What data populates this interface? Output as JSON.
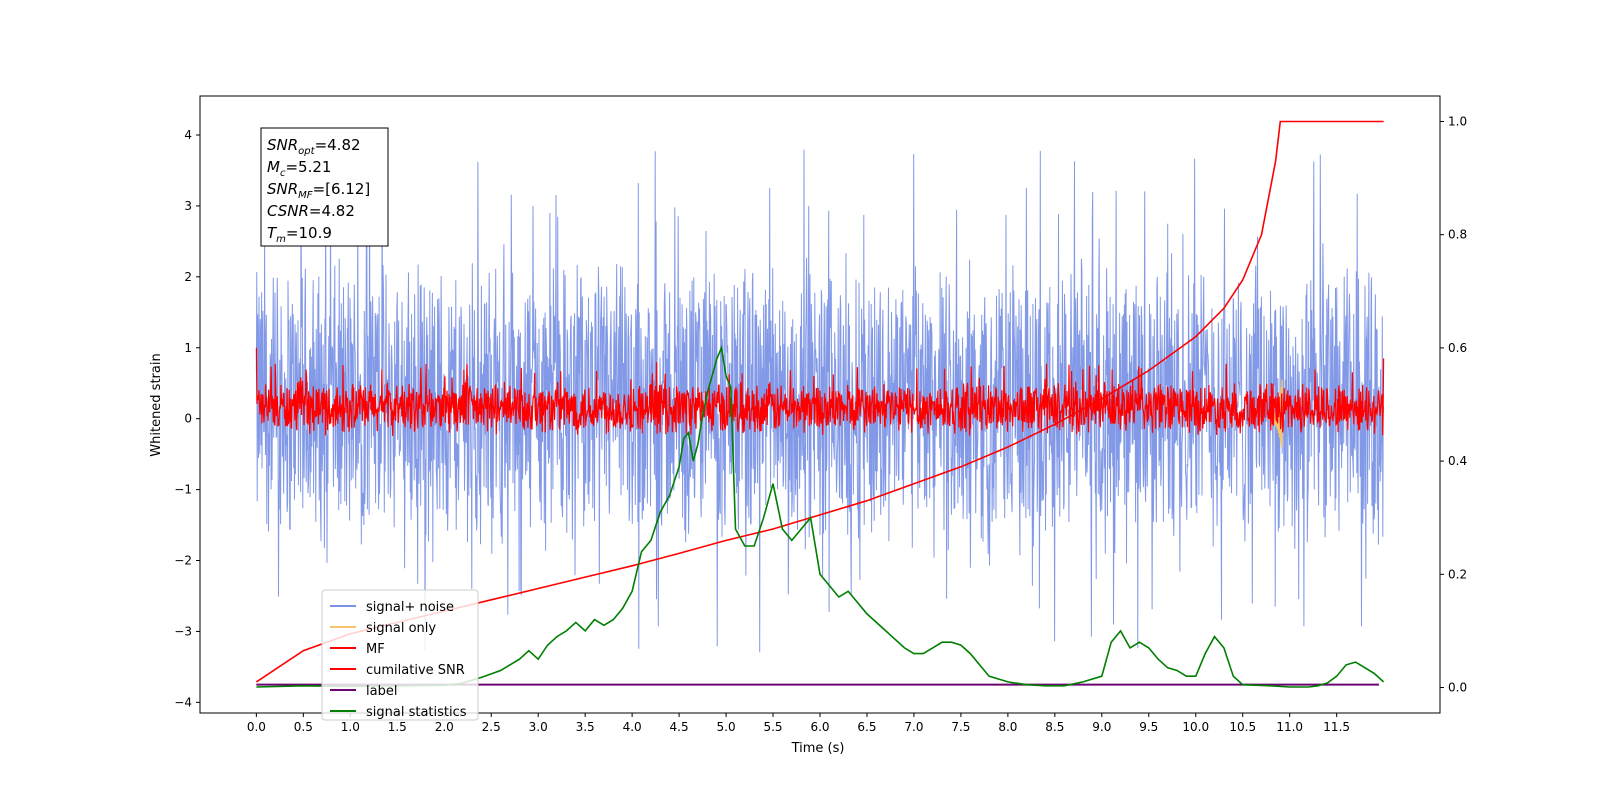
{
  "chart_data": {
    "type": "line",
    "xlabel": "Time (s)",
    "ylabel": "Whitened strain",
    "xlim": [
      -0.6,
      12.6
    ],
    "ylim": [
      -4.15,
      4.55
    ],
    "ylim_right": [
      -0.045,
      1.045
    ],
    "x_ticks": [
      "0.0",
      "0.5",
      "1.0",
      "1.5",
      "2.0",
      "2.5",
      "3.0",
      "3.5",
      "4.0",
      "4.5",
      "5.0",
      "5.5",
      "6.0",
      "6.5",
      "7.0",
      "7.5",
      "8.0",
      "8.5",
      "9.0",
      "9.5",
      "10.0",
      "10.5",
      "11.0",
      "11.5"
    ],
    "y_ticks_left": [
      "4",
      "3",
      "2",
      "1",
      "0",
      "−1",
      "−2",
      "−3",
      "−4"
    ],
    "y_ticks_right": [
      "1.0",
      "0.8",
      "0.6",
      "0.4",
      "0.2",
      "0.0"
    ],
    "annotation": {
      "lines": [
        {
          "sym": "SNR",
          "sub": "opt",
          "val": "=4.82"
        },
        {
          "sym": "M",
          "sub": "c",
          "val": "=5.21"
        },
        {
          "sym": "SNR",
          "sub": "MF",
          "val": "=[6.12]"
        },
        {
          "sym": "CSNR",
          "sub": "",
          "val": "=4.82"
        },
        {
          "sym": "T",
          "sub": "m",
          "val": "=10.9"
        }
      ]
    },
    "legend": {
      "placement": "lower-left",
      "entries": [
        {
          "label": "signal+ noise",
          "color": "#7b93e6"
        },
        {
          "label": "signal only",
          "color": "#f5c56e"
        },
        {
          "label": "MF",
          "color": "#ff0000"
        },
        {
          "label": "cumilative SNR",
          "color": "#ff0000"
        },
        {
          "label": "label",
          "color": "#6a0572"
        },
        {
          "label": "signal statistics",
          "color": "#007f00"
        }
      ]
    },
    "series": [
      {
        "name": "signal+ noise",
        "axis": "left",
        "color": "#7b93e6",
        "x_range": [
          0.0,
          12.0
        ],
        "band": [
          -2.0,
          2.4
        ],
        "spike_high": [
          4.17,
          4.0
        ],
        "spike_low": [
          -3.7,
          -3.6
        ]
      },
      {
        "name": "MF",
        "axis": "left",
        "color": "#ff0000",
        "x_range": [
          0.0,
          12.0
        ],
        "band": [
          -0.25,
          0.55
        ],
        "start_value": 1.0,
        "end_value": 0.85
      },
      {
        "name": "signal only",
        "axis": "left",
        "color": "#f5c56e",
        "x_range": [
          10.75,
          10.92
        ],
        "peak": [
          -0.45,
          0.55
        ]
      },
      {
        "name": "cumilative SNR",
        "axis": "right",
        "color": "#ff0000",
        "x": [
          0.0,
          0.5,
          1.0,
          1.5,
          2.0,
          2.5,
          3.0,
          3.5,
          4.0,
          4.5,
          5.0,
          5.5,
          6.0,
          6.5,
          7.0,
          7.5,
          8.0,
          8.5,
          9.0,
          9.5,
          10.0,
          10.3,
          10.5,
          10.7,
          10.85,
          10.9,
          11.2,
          11.5,
          12.0
        ],
        "values": [
          0.01,
          0.065,
          0.095,
          0.115,
          0.135,
          0.155,
          0.175,
          0.195,
          0.215,
          0.237,
          0.26,
          0.28,
          0.305,
          0.33,
          0.36,
          0.39,
          0.425,
          0.465,
          0.51,
          0.56,
          0.62,
          0.67,
          0.72,
          0.8,
          0.93,
          1.0,
          1.0,
          1.0,
          1.0
        ]
      },
      {
        "name": "label",
        "axis": "left",
        "color": "#6a0572",
        "x": [
          0.0,
          11.95
        ],
        "values": [
          -3.75,
          -3.75
        ]
      },
      {
        "name": "signal statistics",
        "axis": "right",
        "color": "#007f00",
        "x": [
          0.0,
          0.5,
          1.0,
          1.5,
          2.0,
          2.2,
          2.4,
          2.6,
          2.8,
          2.9,
          3.0,
          3.1,
          3.2,
          3.3,
          3.4,
          3.5,
          3.6,
          3.7,
          3.8,
          3.9,
          4.0,
          4.1,
          4.2,
          4.3,
          4.4,
          4.5,
          4.55,
          4.6,
          4.65,
          4.7,
          4.75,
          4.8,
          4.85,
          4.9,
          4.95,
          5.0,
          5.05,
          5.1,
          5.2,
          5.3,
          5.4,
          5.5,
          5.6,
          5.7,
          5.8,
          5.9,
          6.0,
          6.1,
          6.2,
          6.3,
          6.5,
          6.7,
          6.9,
          7.0,
          7.1,
          7.2,
          7.3,
          7.4,
          7.5,
          7.6,
          7.8,
          8.0,
          8.2,
          8.4,
          8.6,
          8.8,
          9.0,
          9.1,
          9.2,
          9.3,
          9.4,
          9.5,
          9.6,
          9.7,
          9.8,
          9.9,
          10.0,
          10.1,
          10.2,
          10.3,
          10.4,
          10.5,
          10.8,
          11.0,
          11.2,
          11.3,
          11.4,
          11.5,
          11.6,
          11.7,
          11.8,
          11.9,
          12.0
        ],
        "values": [
          0.001,
          0.003,
          0.002,
          0.003,
          0.004,
          0.008,
          0.018,
          0.03,
          0.05,
          0.065,
          0.05,
          0.075,
          0.09,
          0.1,
          0.115,
          0.1,
          0.12,
          0.11,
          0.12,
          0.14,
          0.17,
          0.24,
          0.26,
          0.31,
          0.34,
          0.39,
          0.44,
          0.45,
          0.4,
          0.43,
          0.48,
          0.52,
          0.55,
          0.58,
          0.6,
          0.55,
          0.53,
          0.28,
          0.25,
          0.25,
          0.3,
          0.36,
          0.28,
          0.26,
          0.28,
          0.3,
          0.2,
          0.18,
          0.16,
          0.17,
          0.13,
          0.1,
          0.07,
          0.06,
          0.06,
          0.07,
          0.08,
          0.08,
          0.075,
          0.06,
          0.02,
          0.01,
          0.005,
          0.003,
          0.003,
          0.01,
          0.02,
          0.08,
          0.1,
          0.07,
          0.08,
          0.07,
          0.05,
          0.035,
          0.03,
          0.02,
          0.02,
          0.06,
          0.09,
          0.07,
          0.02,
          0.005,
          0.003,
          0.001,
          0.001,
          0.003,
          0.008,
          0.02,
          0.04,
          0.045,
          0.035,
          0.025,
          0.01
        ]
      }
    ]
  }
}
